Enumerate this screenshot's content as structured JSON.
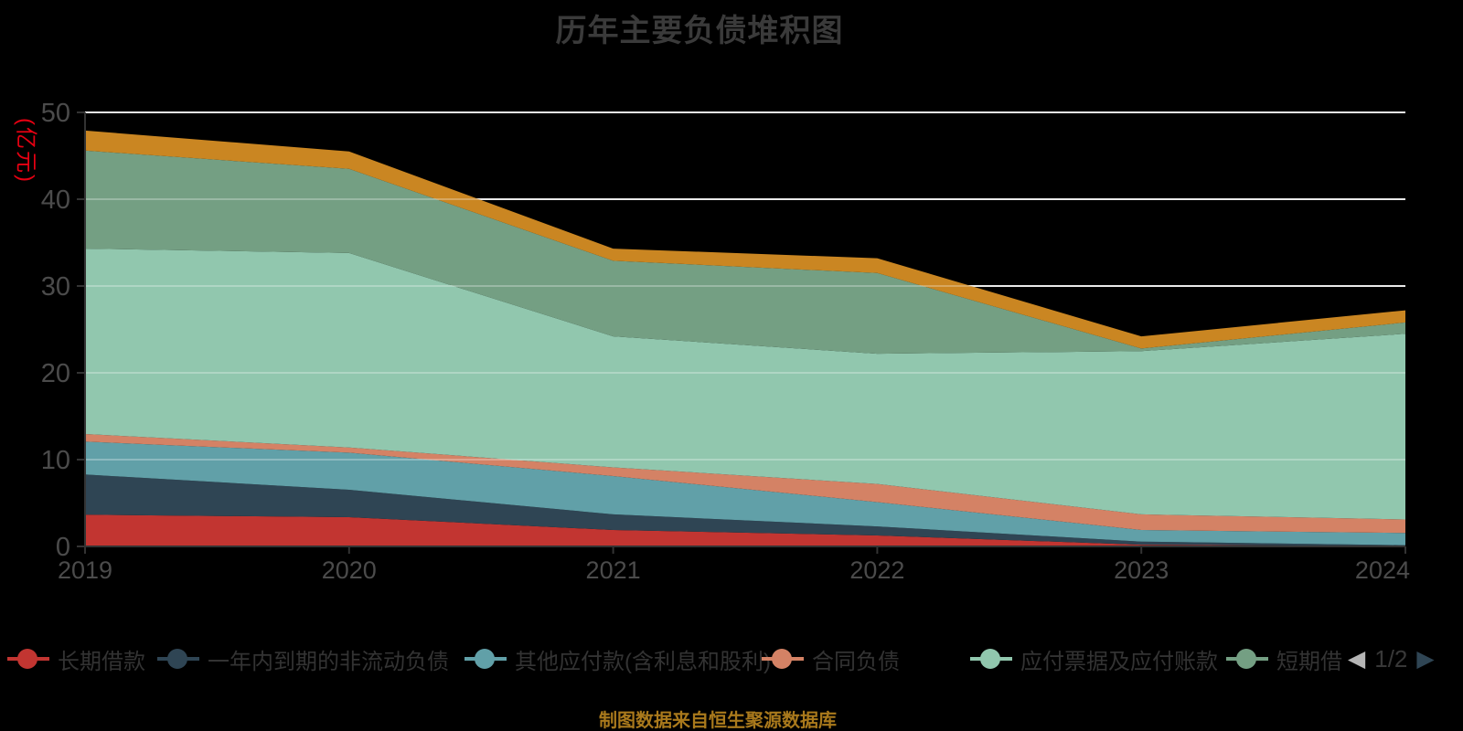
{
  "title": "历年主要负债堆积图",
  "y_axis": {
    "name": "(亿元)",
    "ticks": [
      0,
      10,
      20,
      30,
      40,
      50
    ],
    "max": 50
  },
  "x_axis": {
    "categories": [
      "2019",
      "2020",
      "2021",
      "2022",
      "2023",
      "2024"
    ]
  },
  "legend": {
    "items": [
      {
        "label": "长期借款",
        "color": "#c23531"
      },
      {
        "label": "一年内到期的非流动负债",
        "color": "#2f4554"
      },
      {
        "label": "其他应付款(含利息和股利)",
        "color": "#61a0a8"
      },
      {
        "label": "合同负债",
        "color": "#d48265"
      },
      {
        "label": "应付票据及应付账款",
        "color": "#91c7ae"
      },
      {
        "label": "短期借",
        "color": "#749f83"
      }
    ],
    "pager": {
      "prev_icon": "◀",
      "current": "1/2",
      "next_icon": "▶"
    }
  },
  "source_note": "制图数据来自恒生聚源数据库",
  "chart_data": {
    "type": "area",
    "stacked": true,
    "title": "历年主要负债堆积图",
    "ylabel": "(亿元)",
    "ylim": [
      0,
      50
    ],
    "grid": true,
    "legend_position": "bottom",
    "x": [
      "2019",
      "2020",
      "2021",
      "2022",
      "2023",
      "2024"
    ],
    "series": [
      {
        "name": "长期借款",
        "color": "#c23531",
        "values": [
          3.65,
          3.37,
          1.89,
          1.26,
          0.2,
          0.05
        ]
      },
      {
        "name": "一年内到期的非流动负债",
        "color": "#2f4554",
        "values": [
          4.63,
          3.16,
          1.81,
          1.04,
          0.36,
          0.1
        ]
      },
      {
        "name": "其他应付款(含利息和股利)",
        "color": "#61a0a8",
        "values": [
          3.79,
          4.27,
          4.4,
          2.8,
          1.34,
          1.4
        ]
      },
      {
        "name": "合同负债",
        "color": "#d48265",
        "values": [
          0.88,
          0.6,
          1.0,
          2.1,
          1.8,
          1.55
        ]
      },
      {
        "name": "应付票据及应付账款",
        "color": "#91c7ae",
        "values": [
          21.35,
          22.4,
          15.1,
          15.0,
          18.8,
          21.4
        ]
      },
      {
        "name": "短期借款",
        "color": "#749f83",
        "values": [
          11.3,
          9.7,
          8.7,
          9.3,
          0.3,
          1.3
        ]
      },
      {
        "name": "",
        "color": "#ca8622",
        "values": [
          2.3,
          2.0,
          1.4,
          1.7,
          1.4,
          1.4
        ]
      }
    ]
  }
}
